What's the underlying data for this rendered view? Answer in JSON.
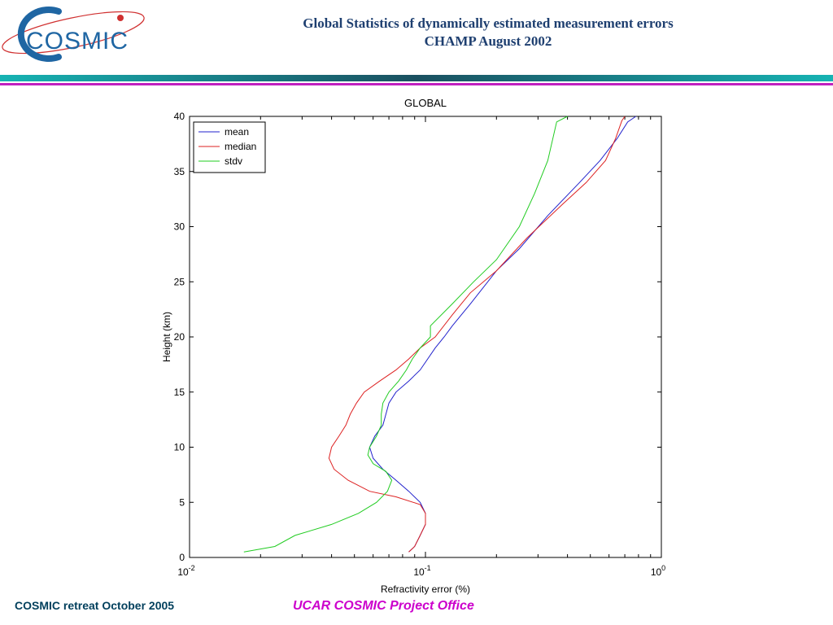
{
  "header": {
    "logo_text": "COSMIC",
    "title_line1": "Global Statistics of dynamically estimated measurement errors",
    "title_line2": "CHAMP August 2002"
  },
  "colors": {
    "title": "#1e3f70",
    "band_teal": "#16b3b3",
    "band_dark": "#1a5060",
    "band_magenta": "#c020c0",
    "logo_blue": "#1f66a3",
    "logo_red": "#d03030",
    "footer_left": "#003f5c",
    "footer_center": "#cc00cc"
  },
  "chart_data": {
    "type": "line",
    "title": "GLOBAL",
    "xlabel": "Refractivity error (%)",
    "ylabel": "Height (km)",
    "xscale": "log",
    "xlim": [
      0.01,
      1
    ],
    "ylim": [
      0,
      40
    ],
    "xticks": [
      {
        "value": 0.01,
        "base": "10",
        "exp": "-2"
      },
      {
        "value": 0.1,
        "base": "10",
        "exp": "-1"
      },
      {
        "value": 1,
        "base": "10",
        "exp": "0"
      }
    ],
    "yticks": [
      0,
      5,
      10,
      15,
      20,
      25,
      30,
      35,
      40
    ],
    "legend_position": "top-left",
    "series": [
      {
        "name": "mean",
        "color": "#2222cc",
        "points": [
          [
            0.085,
            0.5
          ],
          [
            0.09,
            1
          ],
          [
            0.095,
            2
          ],
          [
            0.1,
            3
          ],
          [
            0.1,
            4
          ],
          [
            0.095,
            5
          ],
          [
            0.085,
            6
          ],
          [
            0.075,
            7
          ],
          [
            0.066,
            8
          ],
          [
            0.06,
            9
          ],
          [
            0.058,
            10
          ],
          [
            0.061,
            11
          ],
          [
            0.066,
            12
          ],
          [
            0.068,
            13
          ],
          [
            0.07,
            14
          ],
          [
            0.075,
            15
          ],
          [
            0.085,
            16
          ],
          [
            0.095,
            17
          ],
          [
            0.11,
            19
          ],
          [
            0.12,
            20
          ],
          [
            0.13,
            21
          ],
          [
            0.155,
            23
          ],
          [
            0.2,
            26
          ],
          [
            0.25,
            28
          ],
          [
            0.33,
            31
          ],
          [
            0.45,
            34
          ],
          [
            0.55,
            36
          ],
          [
            0.65,
            38
          ],
          [
            0.72,
            39.5
          ],
          [
            0.78,
            40
          ]
        ]
      },
      {
        "name": "median",
        "color": "#dd2222",
        "points": [
          [
            0.085,
            0.5
          ],
          [
            0.09,
            1
          ],
          [
            0.095,
            2
          ],
          [
            0.1,
            3
          ],
          [
            0.1,
            4
          ],
          [
            0.095,
            4.8
          ],
          [
            0.075,
            5.5
          ],
          [
            0.058,
            6
          ],
          [
            0.047,
            7
          ],
          [
            0.041,
            8
          ],
          [
            0.039,
            9
          ],
          [
            0.04,
            10
          ],
          [
            0.043,
            11
          ],
          [
            0.046,
            12
          ],
          [
            0.048,
            13
          ],
          [
            0.051,
            14
          ],
          [
            0.055,
            15
          ],
          [
            0.064,
            16
          ],
          [
            0.075,
            17
          ],
          [
            0.085,
            18
          ],
          [
            0.095,
            19
          ],
          [
            0.11,
            20
          ],
          [
            0.13,
            22
          ],
          [
            0.155,
            24
          ],
          [
            0.2,
            26
          ],
          [
            0.27,
            29
          ],
          [
            0.38,
            32
          ],
          [
            0.48,
            34
          ],
          [
            0.58,
            36
          ],
          [
            0.64,
            38
          ],
          [
            0.68,
            39.6
          ],
          [
            0.7,
            40
          ]
        ]
      },
      {
        "name": "stdv",
        "color": "#22cc22",
        "points": [
          [
            0.017,
            0.5
          ],
          [
            0.023,
            1
          ],
          [
            0.028,
            2
          ],
          [
            0.04,
            3
          ],
          [
            0.052,
            4
          ],
          [
            0.062,
            5
          ],
          [
            0.069,
            6
          ],
          [
            0.072,
            7
          ],
          [
            0.068,
            7.8
          ],
          [
            0.06,
            8.5
          ],
          [
            0.057,
            9.3
          ],
          [
            0.058,
            10
          ],
          [
            0.062,
            11
          ],
          [
            0.065,
            12
          ],
          [
            0.065,
            13
          ],
          [
            0.066,
            14
          ],
          [
            0.07,
            15
          ],
          [
            0.077,
            16
          ],
          [
            0.083,
            17
          ],
          [
            0.088,
            18
          ],
          [
            0.095,
            19
          ],
          [
            0.105,
            20
          ],
          [
            0.105,
            21
          ],
          [
            0.13,
            23
          ],
          [
            0.16,
            25
          ],
          [
            0.2,
            27
          ],
          [
            0.25,
            30
          ],
          [
            0.29,
            33
          ],
          [
            0.33,
            36
          ],
          [
            0.36,
            39.5
          ],
          [
            0.4,
            40
          ]
        ]
      }
    ]
  },
  "footer": {
    "left_text": "COSMIC retreat October 2005",
    "center_text": "UCAR COSMIC Project Office"
  }
}
